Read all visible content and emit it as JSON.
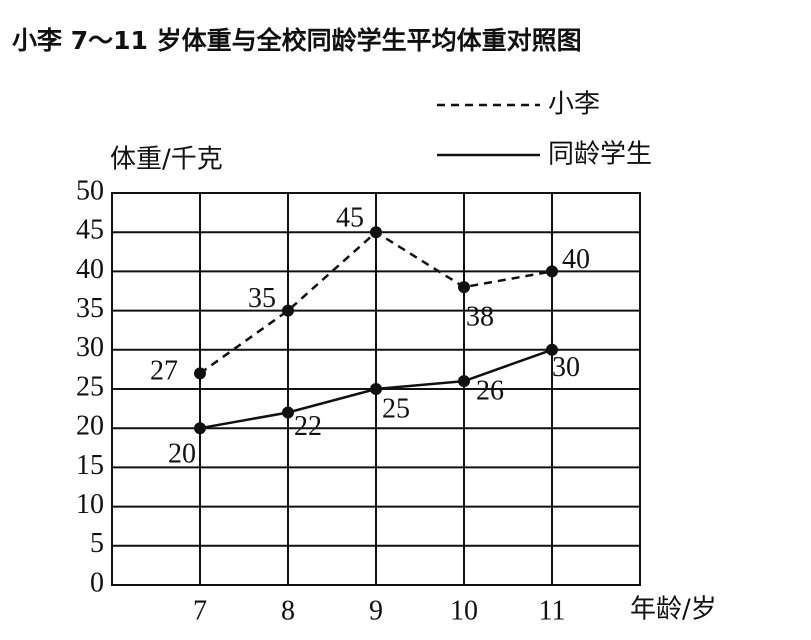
{
  "chart_data": {
    "type": "line",
    "title": "小李 7～11 岁体重与全校同龄学生平均体重对照图",
    "y_label": "体重/千克",
    "x_label": "年龄/岁",
    "x": [
      7,
      8,
      9,
      10,
      11
    ],
    "xlim": [
      6,
      12
    ],
    "xticks": [
      7,
      8,
      9,
      10,
      11
    ],
    "ylim": [
      0,
      50
    ],
    "yticks": [
      0,
      5,
      10,
      15,
      20,
      25,
      30,
      35,
      40,
      45,
      50
    ],
    "grid": true,
    "legend": "top-right",
    "series": [
      {
        "name": "小李",
        "color": "#111111",
        "line_style": "dashed",
        "values": [
          27,
          35,
          45,
          38,
          40
        ]
      },
      {
        "name": "同龄学生",
        "color": "#111111",
        "line_style": "solid",
        "values": [
          20,
          22,
          25,
          26,
          30
        ]
      }
    ]
  }
}
